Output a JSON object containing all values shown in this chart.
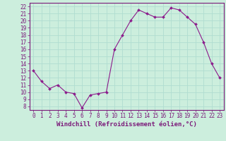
{
  "x": [
    0,
    1,
    2,
    3,
    4,
    5,
    6,
    7,
    8,
    9,
    10,
    11,
    12,
    13,
    14,
    15,
    16,
    17,
    18,
    19,
    20,
    21,
    22,
    23
  ],
  "y": [
    13,
    11.5,
    10.5,
    11,
    10,
    9.8,
    7.8,
    9.6,
    9.8,
    10,
    16,
    18,
    20,
    21.5,
    21,
    20.5,
    20.5,
    21.8,
    21.5,
    20.5,
    19.5,
    17,
    14,
    12
  ],
  "line_color": "#8b1a8b",
  "marker": "D",
  "marker_size": 2.0,
  "bg_color": "#cceedd",
  "grid_color": "#b0ddd0",
  "xlabel": "Windchill (Refroidissement éolien,°C)",
  "xlim": [
    -0.5,
    23.5
  ],
  "ylim": [
    7.5,
    22.5
  ],
  "yticks": [
    8,
    9,
    10,
    11,
    12,
    13,
    14,
    15,
    16,
    17,
    18,
    19,
    20,
    21,
    22
  ],
  "xticks": [
    0,
    1,
    2,
    3,
    4,
    5,
    6,
    7,
    8,
    9,
    10,
    11,
    12,
    13,
    14,
    15,
    16,
    17,
    18,
    19,
    20,
    21,
    22,
    23
  ],
  "tick_color": "#7b1a7a",
  "axis_color": "#7b1a7a",
  "xlabel_color": "#7b1a7a",
  "xlabel_fontsize": 6.5,
  "tick_fontsize": 5.5,
  "linewidth": 0.8
}
